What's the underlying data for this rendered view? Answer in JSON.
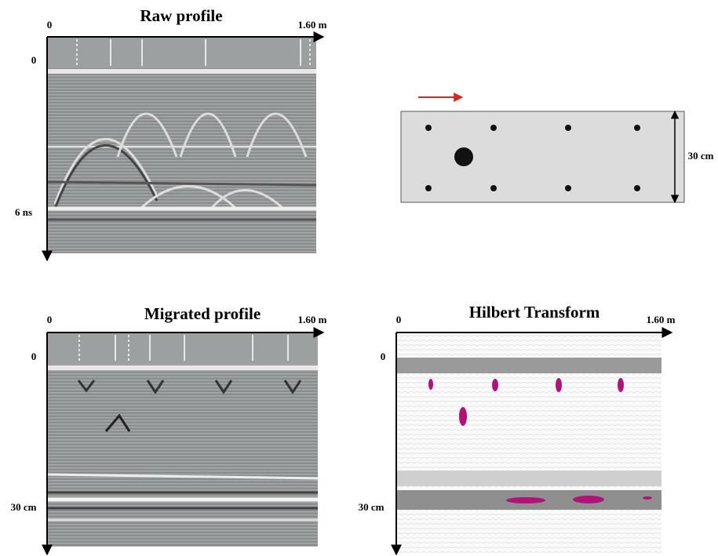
{
  "panels": [
    {
      "title": "Raw profile",
      "x_start": "0",
      "x_end": "1.60 m",
      "y_start": "0",
      "y_end": "6 ns"
    },
    {
      "title": "Migrated profile",
      "x_start": "0",
      "x_end": "1.60 m",
      "y_start": "0",
      "y_end": "30 cm"
    },
    {
      "title": "Hilbert Transform",
      "x_start": "0",
      "x_end": "1.60 m",
      "y_start": "0",
      "y_end": "30 cm"
    }
  ],
  "schematic": {
    "depth_label": "30 cm"
  }
}
